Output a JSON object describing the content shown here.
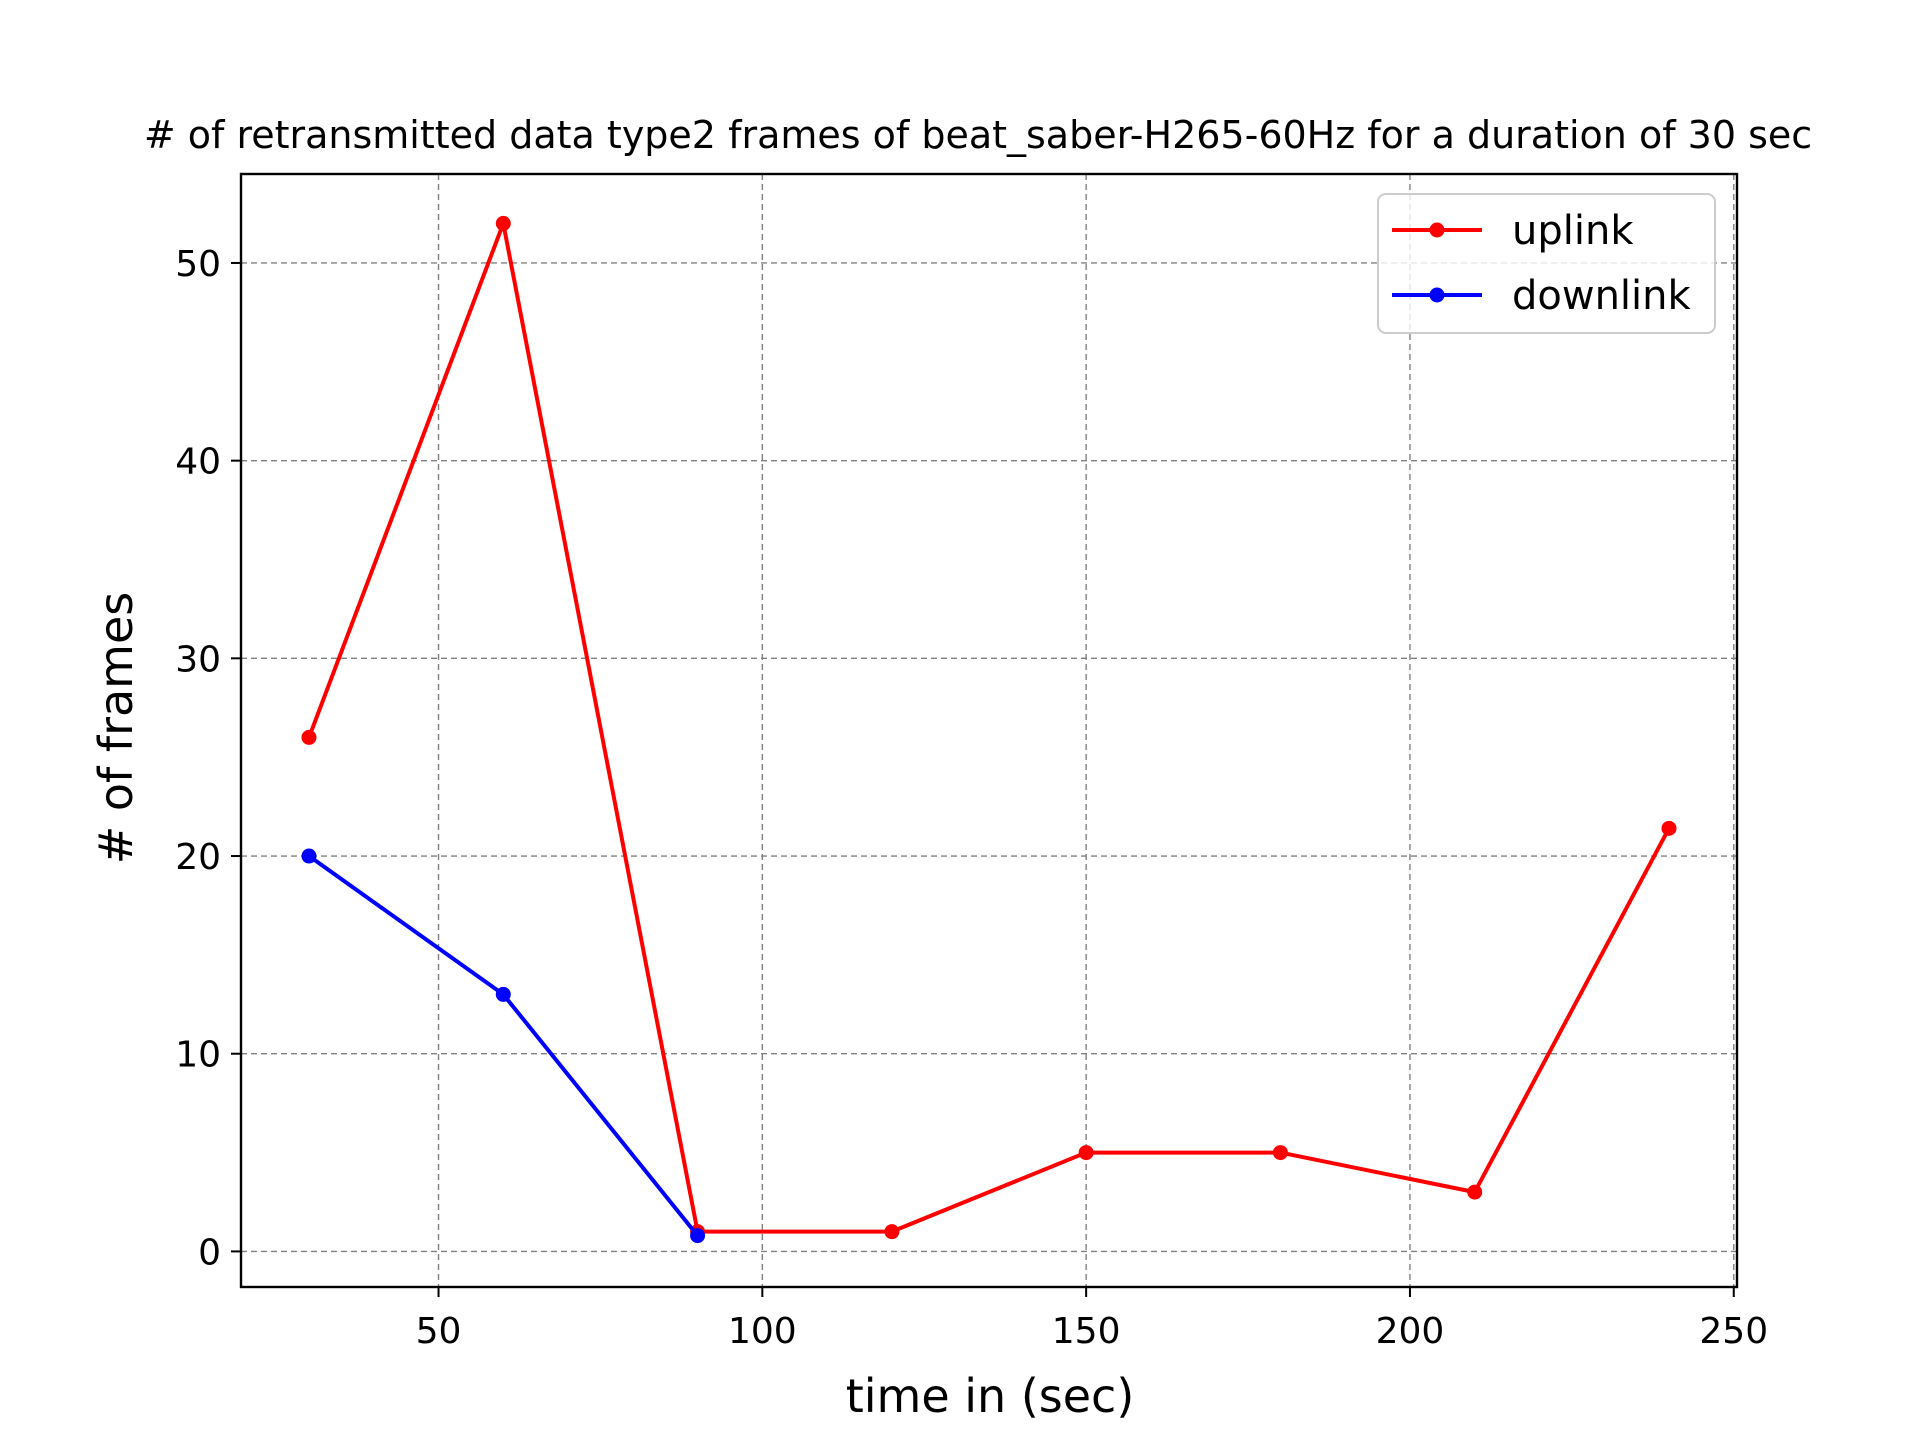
{
  "chart_data": {
    "type": "line",
    "title": "# of retransmitted data type2 frames of beat_saber-H265-60Hz for a duration of 30 sec",
    "xlabel": "time in (sec)",
    "ylabel": "# of frames",
    "xlim": [
      19.5,
      250.5
    ],
    "ylim": [
      -1.8,
      54.5
    ],
    "xticks": [
      50,
      100,
      150,
      200,
      250
    ],
    "yticks": [
      0,
      10,
      20,
      30,
      40,
      50
    ],
    "grid": true,
    "legend_position": "top-right",
    "series": [
      {
        "name": "uplink",
        "color": "#ff0000",
        "x": [
          30,
          60,
          90,
          120,
          150,
          180,
          210,
          240
        ],
        "y": [
          26,
          52,
          1,
          1,
          5,
          5,
          3,
          21.4
        ]
      },
      {
        "name": "downlink",
        "color": "#0000ff",
        "x": [
          30,
          60,
          90
        ],
        "y": [
          20,
          13,
          0.8
        ]
      }
    ]
  }
}
